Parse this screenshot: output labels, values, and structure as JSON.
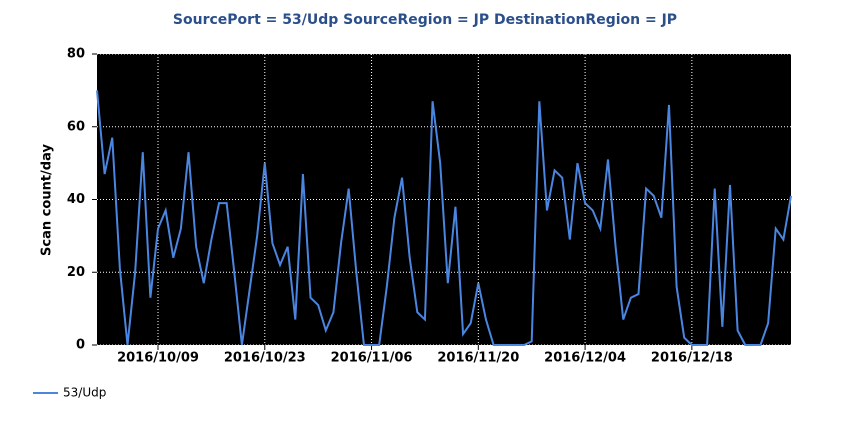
{
  "chart_data": {
    "type": "line",
    "title": "SourcePort = 53/Udp  SourceRegion = JP DestinationRegion = JP",
    "y_label": "Scan count/day",
    "x": [
      "2016/10/01",
      "2016/10/02",
      "2016/10/03",
      "2016/10/04",
      "2016/10/05",
      "2016/10/06",
      "2016/10/07",
      "2016/10/08",
      "2016/10/09",
      "2016/10/10",
      "2016/10/11",
      "2016/10/12",
      "2016/10/13",
      "2016/10/14",
      "2016/10/15",
      "2016/10/16",
      "2016/10/17",
      "2016/10/18",
      "2016/10/19",
      "2016/10/20",
      "2016/10/21",
      "2016/10/22",
      "2016/10/23",
      "2016/10/24",
      "2016/10/25",
      "2016/10/26",
      "2016/10/27",
      "2016/10/28",
      "2016/10/29",
      "2016/10/30",
      "2016/10/31",
      "2016/11/01",
      "2016/11/02",
      "2016/11/03",
      "2016/11/04",
      "2016/11/05",
      "2016/11/06",
      "2016/11/07",
      "2016/11/08",
      "2016/11/09",
      "2016/11/10",
      "2016/11/11",
      "2016/11/12",
      "2016/11/13",
      "2016/11/14",
      "2016/11/15",
      "2016/11/16",
      "2016/11/17",
      "2016/11/18",
      "2016/11/19",
      "2016/11/20",
      "2016/11/21",
      "2016/11/22",
      "2016/11/23",
      "2016/11/24",
      "2016/11/25",
      "2016/11/26",
      "2016/11/27",
      "2016/11/28",
      "2016/11/29",
      "2016/11/30",
      "2016/12/01",
      "2016/12/02",
      "2016/12/03",
      "2016/12/04",
      "2016/12/05",
      "2016/12/06",
      "2016/12/07",
      "2016/12/08",
      "2016/12/09",
      "2016/12/10",
      "2016/12/11",
      "2016/12/12",
      "2016/12/13",
      "2016/12/14",
      "2016/12/15",
      "2016/12/16",
      "2016/12/17",
      "2016/12/18",
      "2016/12/19",
      "2016/12/20",
      "2016/12/21",
      "2016/12/22",
      "2016/12/23",
      "2016/12/24",
      "2016/12/25",
      "2016/12/26",
      "2016/12/27",
      "2016/12/28",
      "2016/12/29",
      "2016/12/30",
      "2016/12/31"
    ],
    "series": [
      {
        "name": "53/Udp",
        "color": "#4a86e0",
        "values": [
          70,
          47,
          57,
          21,
          0,
          20,
          53,
          13,
          32,
          37,
          24,
          32,
          53,
          27,
          17,
          29,
          39,
          39,
          20,
          0,
          15,
          30,
          50,
          28,
          22,
          27,
          7,
          47,
          13,
          11,
          4,
          9,
          28,
          43,
          20,
          0,
          0,
          0,
          16,
          35,
          46,
          24,
          9,
          7,
          67,
          50,
          17,
          38,
          3,
          6,
          17,
          7,
          0,
          0,
          0,
          0,
          0,
          1,
          67,
          37,
          48,
          46,
          29,
          50,
          39,
          37,
          32,
          51,
          27,
          7,
          13,
          14,
          43,
          41,
          35,
          66,
          16,
          2,
          0,
          0,
          0,
          43,
          5,
          44,
          4,
          0,
          0,
          0,
          6,
          32,
          29,
          41
        ]
      }
    ],
    "xlim": [
      "2016/10/01",
      "2016/12/31"
    ],
    "xticks": [
      "2016/10/09",
      "2016/10/23",
      "2016/11/06",
      "2016/11/20",
      "2016/12/04",
      "2016/12/18"
    ],
    "ylim": [
      0,
      80
    ],
    "yticks": [
      0,
      20,
      40,
      60,
      80
    ],
    "grid": true
  }
}
